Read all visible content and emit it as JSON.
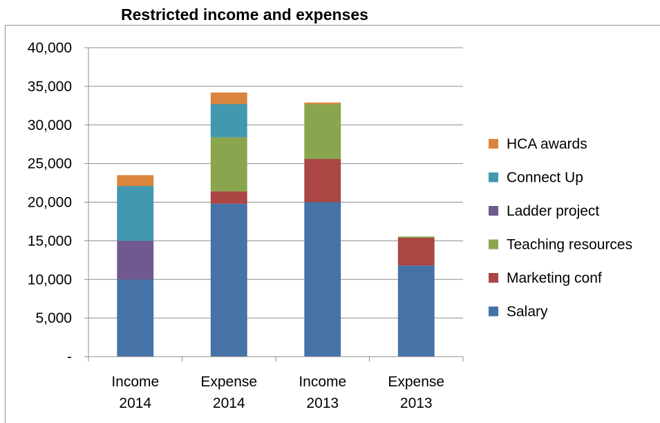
{
  "chart_data": {
    "type": "bar",
    "stacked": true,
    "title": "Restricted income and expenses",
    "categories": [
      [
        "Income",
        "2014"
      ],
      [
        "Expense",
        "2014"
      ],
      [
        "Income",
        "2013"
      ],
      [
        "Expense",
        "2013"
      ]
    ],
    "ylim": [
      0,
      40000
    ],
    "yticks": [
      0,
      5000,
      10000,
      15000,
      20000,
      25000,
      30000,
      35000,
      40000
    ],
    "ytick_labels": [
      "-",
      "5,000",
      "10,000",
      "15,000",
      "20,000",
      "25,000",
      "30,000",
      "35,000",
      "40,000"
    ],
    "grid": true,
    "legend_position": "right",
    "series": [
      {
        "name": "Salary",
        "color": "#4572A7",
        "values": [
          10000,
          19800,
          20000,
          11800
        ]
      },
      {
        "name": "Marketing conf",
        "color": "#AA4643",
        "values": [
          0,
          1600,
          5600,
          3600
        ]
      },
      {
        "name": "Teaching resources",
        "color": "#89A54E",
        "values": [
          0,
          7000,
          7100,
          150
        ]
      },
      {
        "name": "Ladder project",
        "color": "#71588F",
        "values": [
          5000,
          0,
          0,
          0
        ]
      },
      {
        "name": "Connect Up",
        "color": "#4198AF",
        "values": [
          7100,
          4300,
          0,
          0
        ]
      },
      {
        "name": "HCA awards",
        "color": "#DB843D",
        "values": [
          1400,
          1500,
          200,
          0
        ]
      }
    ]
  }
}
